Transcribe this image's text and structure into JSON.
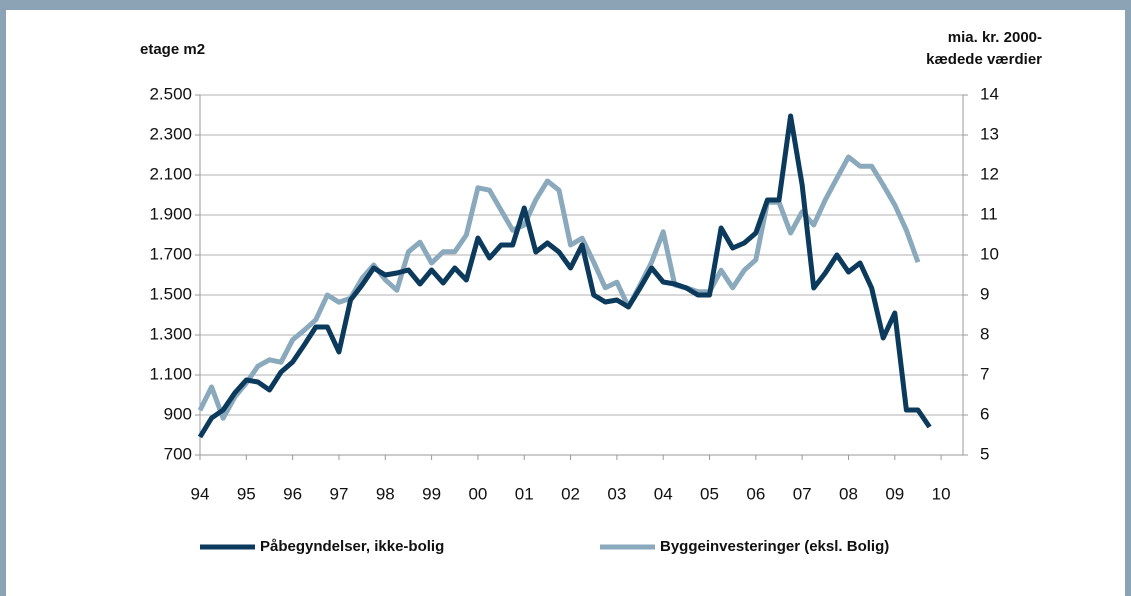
{
  "chart_data": {
    "type": "line",
    "y_label": "etage m2",
    "y2_label": [
      "mia. kr. 2000-",
      "kædede værdier"
    ],
    "categories": [
      "94",
      null,
      null,
      null,
      "95",
      null,
      null,
      null,
      "96",
      null,
      null,
      null,
      "97",
      null,
      null,
      null,
      "98",
      null,
      null,
      null,
      "99",
      null,
      null,
      null,
      "00",
      null,
      null,
      null,
      "01",
      null,
      null,
      null,
      "02",
      null,
      null,
      null,
      "03",
      null,
      null,
      null,
      "04",
      null,
      null,
      null,
      "05",
      null,
      null,
      null,
      "06",
      null,
      null,
      null,
      "07",
      null,
      null,
      null,
      "08",
      null,
      null,
      null,
      "09",
      null,
      null,
      null,
      "10"
    ],
    "ylim": [
      700,
      2500
    ],
    "yticks": [
      {
        "value": 2500,
        "label": "2.500"
      },
      {
        "value": 2300,
        "label": "2.300"
      },
      {
        "value": 2100,
        "label": "2.100"
      },
      {
        "value": 1900,
        "label": "1.900"
      },
      {
        "value": 1700,
        "label": "1.700"
      },
      {
        "value": 1500,
        "label": "1.500"
      },
      {
        "value": 1300,
        "label": "1.300"
      },
      {
        "value": 1100,
        "label": "1.100"
      },
      900,
      700
    ],
    "y2lim": [
      5,
      14
    ],
    "y2ticks": [
      14,
      13,
      12,
      11,
      10,
      9,
      8,
      7,
      6,
      5
    ],
    "grid": true,
    "legend": "bottom",
    "series": [
      {
        "name": "Påbegyndelser, ikke-bolig",
        "color": "#0b3a5c",
        "axis": "y",
        "values": [
          790,
          885,
          925,
          1010,
          1075,
          1065,
          1025,
          1115,
          1165,
          1250,
          1340,
          1340,
          1215,
          1475,
          1550,
          1635,
          1600,
          1610,
          1625,
          1555,
          1625,
          1560,
          1635,
          1575,
          1785,
          1685,
          1750,
          1750,
          1935,
          1715,
          1760,
          1715,
          1635,
          1750,
          1500,
          1465,
          1475,
          1440,
          1535,
          1635,
          1565,
          1555,
          1535,
          1500,
          1500,
          1835,
          1735,
          1760,
          1810,
          1975,
          1975,
          2395,
          2050,
          1535,
          1610,
          1700,
          1615,
          1660,
          1535,
          1285,
          1410,
          925,
          925,
          840,
          null
        ]
      },
      {
        "name": "Byggeinvesteringer (eksl. Bolig)",
        "color": "#8aa9bd",
        "axis": "y2",
        "values": [
          6.12,
          6.7,
          5.92,
          6.45,
          6.8,
          7.22,
          7.38,
          7.32,
          7.88,
          8.12,
          8.38,
          9.0,
          8.82,
          8.92,
          9.42,
          9.75,
          9.38,
          9.12,
          10.08,
          10.32,
          9.8,
          10.08,
          10.08,
          10.5,
          11.68,
          11.62,
          11.12,
          10.62,
          10.75,
          11.38,
          11.85,
          11.62,
          10.25,
          10.42,
          9.82,
          9.18,
          9.32,
          8.7,
          9.25,
          9.82,
          10.58,
          9.25,
          9.18,
          9.08,
          9.08,
          9.62,
          9.18,
          9.62,
          9.88,
          11.32,
          11.32,
          10.55,
          11.08,
          10.75,
          11.38,
          11.92,
          12.45,
          12.22,
          12.22,
          11.75,
          11.25,
          10.62,
          9.82,
          null,
          null
        ]
      }
    ]
  }
}
